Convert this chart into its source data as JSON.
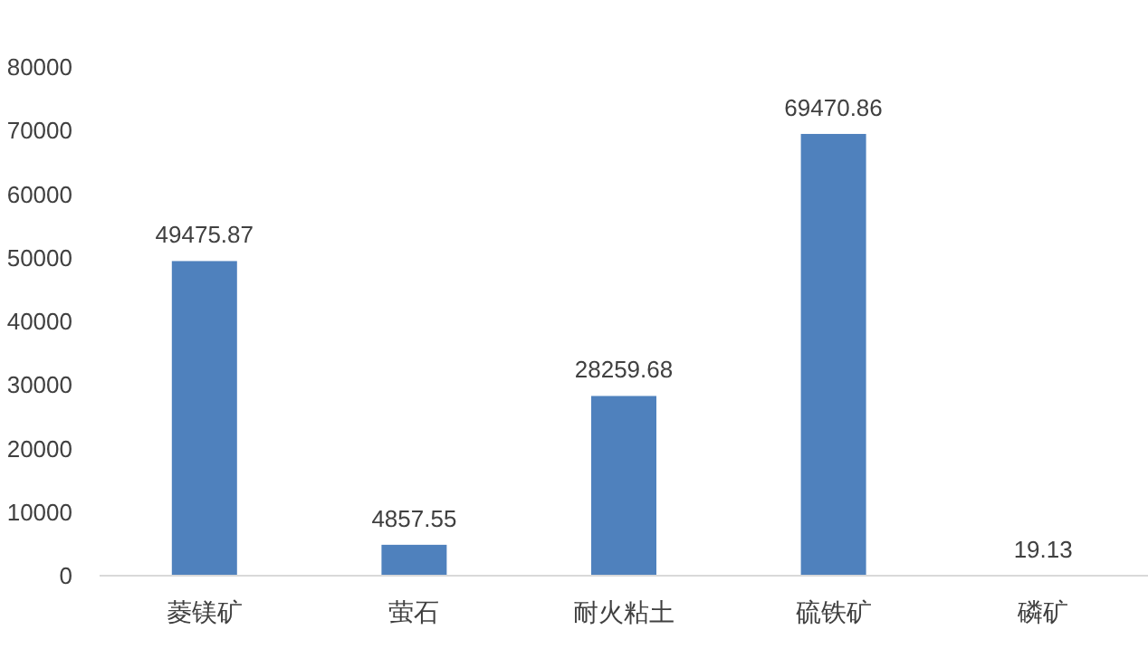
{
  "chart_data": {
    "type": "bar",
    "categories": [
      "菱镁矿",
      "萤石",
      "耐火粘土",
      "硫铁矿",
      "磷矿"
    ],
    "values": [
      49475.87,
      4857.55,
      28259.68,
      69470.86,
      19.13
    ],
    "color": "#4f81bd",
    "ylim": [
      0,
      80000
    ],
    "yticks": [
      0,
      10000,
      20000,
      30000,
      40000,
      50000,
      60000,
      70000,
      80000
    ],
    "data_labels": true,
    "grid": false
  }
}
